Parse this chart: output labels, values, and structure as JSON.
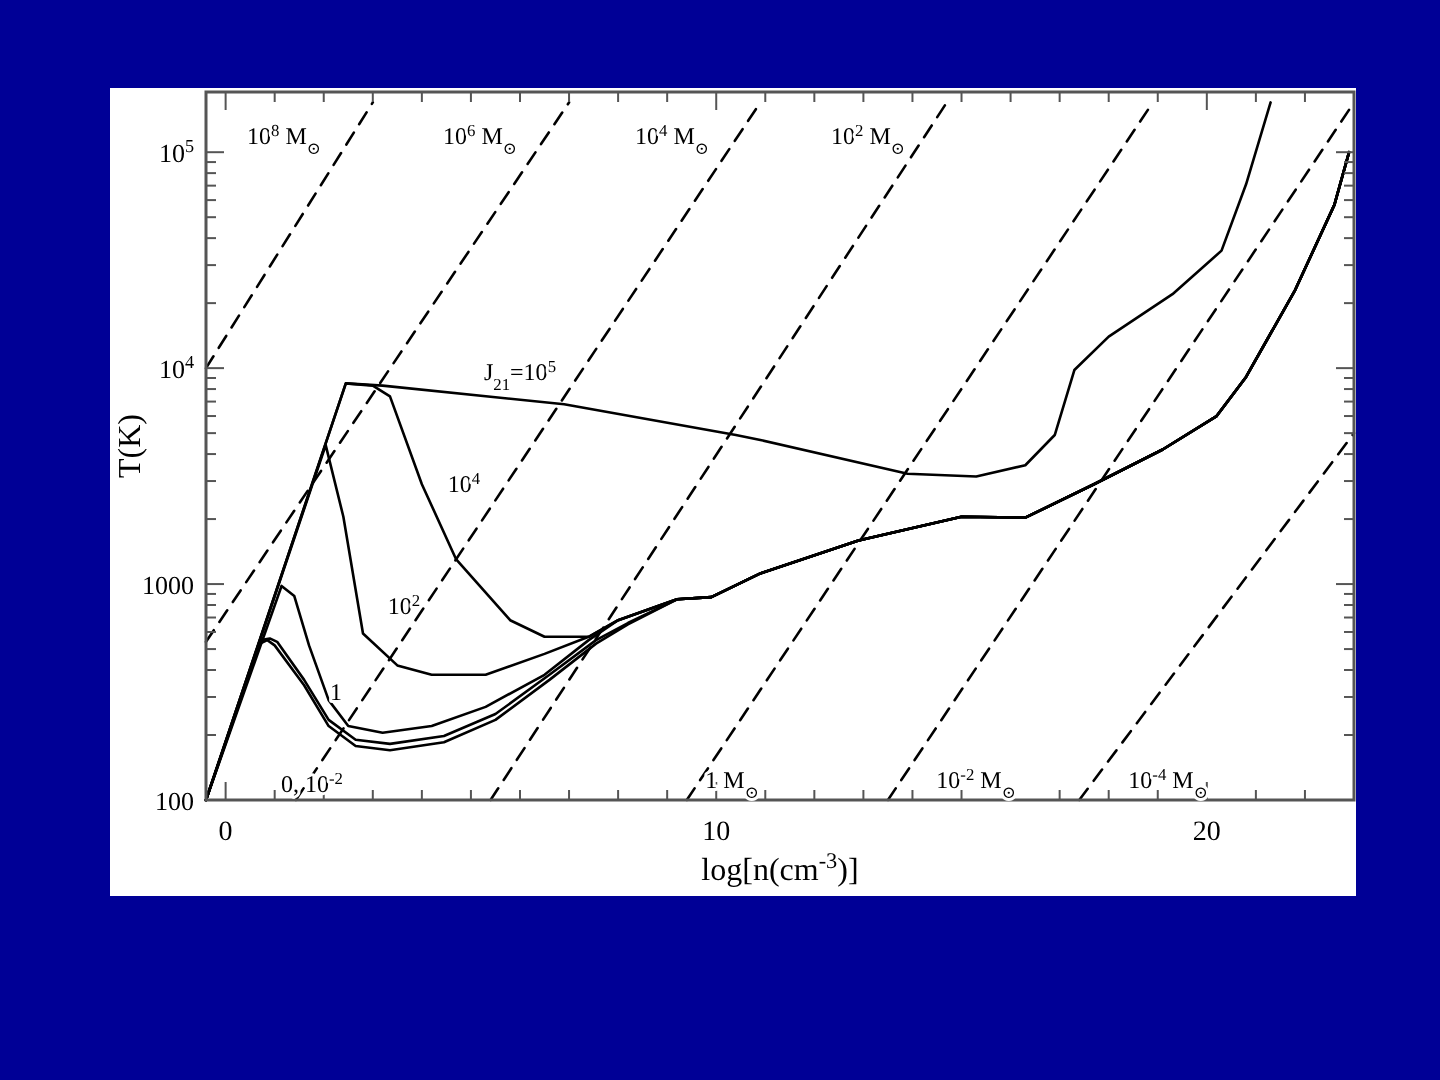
{
  "chart_data": {
    "type": "line",
    "xlabel": "log[n(cm$^{-3}$)]",
    "ylabel": "T(K)",
    "log": "y",
    "xlim": [
      -0.4,
      23.0
    ],
    "ylim": [
      100,
      190000
    ],
    "xticks": [
      0,
      {
        "value": 1,
        "label": null
      },
      {
        "value": 2,
        "label": null
      },
      {
        "value": 3,
        "label": null
      },
      {
        "value": 4,
        "label": null
      },
      {
        "value": 5,
        "label": null
      },
      {
        "value": 6,
        "label": null
      },
      {
        "value": 7,
        "label": null
      },
      {
        "value": 8,
        "label": null
      },
      {
        "value": 9,
        "label": null
      },
      10,
      {
        "value": 11,
        "label": null
      },
      {
        "value": 12,
        "label": null
      },
      {
        "value": 13,
        "label": null
      },
      {
        "value": 14,
        "label": null
      },
      {
        "value": 15,
        "label": null
      },
      {
        "value": 16,
        "label": null
      },
      {
        "value": 17,
        "label": null
      },
      {
        "value": 18,
        "label": null
      },
      {
        "value": 19,
        "label": null
      },
      20,
      {
        "value": 21,
        "label": null
      },
      {
        "value": 22,
        "label": null
      }
    ],
    "yticks": [
      100,
      {
        "value": 200,
        "label": null
      },
      {
        "value": 300,
        "label": null
      },
      {
        "value": 400,
        "label": null
      },
      {
        "value": 500,
        "label": null
      },
      {
        "value": 600,
        "label": null
      },
      {
        "value": 700,
        "label": null
      },
      {
        "value": 800,
        "label": null
      },
      {
        "value": 900,
        "label": null
      },
      1000,
      {
        "value": 2000,
        "label": null
      },
      {
        "value": 3000,
        "label": null
      },
      {
        "value": 4000,
        "label": null
      },
      {
        "value": 5000,
        "label": null
      },
      {
        "value": 6000,
        "label": null
      },
      {
        "value": 7000,
        "label": null
      },
      {
        "value": 8000,
        "label": null
      },
      {
        "value": 9000,
        "label": null
      },
      {
        "value": 10000,
        "label": "10$^{4}$"
      },
      {
        "value": 20000,
        "label": null
      },
      {
        "value": 30000,
        "label": null
      },
      {
        "value": 40000,
        "label": null
      },
      {
        "value": 50000,
        "label": null
      },
      {
        "value": 60000,
        "label": null
      },
      {
        "value": 70000,
        "label": null
      },
      {
        "value": 80000,
        "label": null
      },
      {
        "value": 90000,
        "label": null
      },
      {
        "value": 100000,
        "label": "10$^{5}$"
      }
    ],
    "series": [
      {
        "color": "#000000",
        "line_style": "solid",
        "x": [
          -0.4,
          2.45,
          3.2,
          6.9,
          10.4,
          10.9,
          13.9,
          15.3,
          16.3,
          16.9,
          17.3,
          18.0,
          19.3,
          20.3,
          20.8,
          21.3
        ],
        "values": [
          100,
          8500,
          8300,
          6800,
          4900,
          4650,
          3240,
          3150,
          3550,
          4900,
          9800,
          14000,
          22000,
          35000,
          71000,
          170000
        ]
      },
      {
        "color": "#000000",
        "line_style": "solid",
        "x": [
          -0.4,
          2.45,
          3.0,
          3.35,
          4.0,
          4.7,
          5.8,
          6.5,
          7.4,
          8.0,
          9.2,
          9.9,
          10.9,
          12.9,
          15.0,
          16.3,
          17.7,
          19.1,
          20.2,
          20.8,
          21.8,
          22.6,
          22.9
        ],
        "values": [
          100,
          8500,
          8300,
          7400,
          2900,
          1300,
          680,
          570,
          570,
          680,
          850,
          870,
          1120,
          1590,
          2050,
          2030,
          2900,
          4200,
          6000,
          9100,
          23000,
          57000,
          100000
        ]
      },
      {
        "color": "#000000",
        "line_style": "solid",
        "x": [
          -0.4,
          2.04,
          2.4,
          2.8,
          3.5,
          4.2,
          5.3,
          6.5,
          7.4,
          8.0,
          9.2,
          9.9,
          10.9,
          12.9,
          15.0,
          16.3,
          17.7,
          19.1,
          20.2,
          20.8,
          21.8,
          22.6,
          22.9
        ],
        "values": [
          100,
          4400,
          2050,
          590,
          420,
          380,
          380,
          475,
          570,
          680,
          850,
          870,
          1120,
          1590,
          2050,
          2030,
          2900,
          4200,
          6000,
          9100,
          23000,
          57000,
          100000
        ]
      },
      {
        "color": "#000000",
        "line_style": "solid",
        "x": [
          -0.4,
          1.14,
          1.4,
          1.7,
          2.1,
          2.5,
          3.2,
          4.2,
          5.3,
          6.5,
          7.4,
          8.0,
          9.2,
          9.9,
          10.9,
          12.9,
          15.0,
          16.3,
          17.7,
          19.1,
          20.2,
          20.8,
          21.8,
          22.6,
          22.9
        ],
        "values": [
          100,
          980,
          880,
          520,
          290,
          220,
          205,
          220,
          270,
          380,
          550,
          680,
          850,
          870,
          1120,
          1590,
          2050,
          2030,
          2900,
          4200,
          6000,
          9100,
          23000,
          57000,
          100000
        ]
      },
      {
        "color": "#000000",
        "line_style": "solid",
        "x": [
          -0.4,
          0.7,
          0.85,
          1.0,
          1.6,
          2.1,
          2.65,
          3.35,
          4.45,
          5.5,
          6.6,
          7.55,
          8.2,
          9.2,
          9.9,
          10.9,
          12.9,
          15.0,
          16.3,
          17.7,
          19.1,
          20.2,
          20.8,
          21.8,
          22.6,
          22.9
        ],
        "values": [
          100,
          530,
          550,
          520,
          340,
          220,
          178,
          170,
          185,
          235,
          360,
          530,
          650,
          850,
          870,
          1120,
          1590,
          2050,
          2030,
          2900,
          4200,
          6000,
          9100,
          23000,
          57000,
          100000
        ]
      },
      {
        "color": "#000000",
        "line_style": "solid",
        "x": [
          -0.4,
          0.72,
          0.9,
          1.05,
          1.6,
          2.1,
          2.65,
          3.35,
          4.45,
          5.5,
          6.6,
          7.55,
          8.2,
          9.2,
          9.9,
          10.9,
          12.9,
          15.0,
          16.3,
          17.7,
          19.1,
          20.2,
          20.8,
          21.8,
          22.6,
          22.9
        ],
        "values": [
          100,
          550,
          560,
          540,
          360,
          235,
          190,
          182,
          198,
          250,
          380,
          550,
          660,
          850,
          870,
          1120,
          1590,
          2050,
          2030,
          2900,
          4200,
          6000,
          9100,
          23000,
          57000,
          100000
        ]
      },
      {
        "color": "#000000",
        "line_style": "dashed",
        "x": [
          -0.4,
          3.0
        ],
        "values": [
          10000,
          170000
        ]
      },
      {
        "color": "#000000",
        "line_style": "dashed",
        "x": [
          -0.4,
          7.0
        ],
        "values": [
          540,
          170000
        ]
      },
      {
        "color": "#000000",
        "line_style": "dashed",
        "x": [
          1.43,
          10.9
        ],
        "values": [
          100,
          170000
        ]
      },
      {
        "color": "#000000",
        "line_style": "dashed",
        "x": [
          5.4,
          14.7
        ],
        "values": [
          100,
          170000
        ]
      },
      {
        "color": "#000000",
        "line_style": "dashed",
        "x": [
          9.4,
          18.9
        ],
        "values": [
          100,
          170000
        ]
      },
      {
        "color": "#000000",
        "line_style": "dashed",
        "x": [
          13.5,
          23.0
        ],
        "values": [
          100,
          170000
        ]
      },
      {
        "color": "#000000",
        "line_style": "dashed",
        "x": [
          17.4,
          23.0
        ],
        "values": [
          100,
          5000
        ]
      }
    ],
    "annotations": [
      "J$_{21}$=10$^{5}$",
      "10$^{4}$",
      "10$^{2}$",
      "1",
      "0, 10$^{-2}$",
      "10$^{8}$ M$_{⊙}$",
      "10$^{6}$ M$_{⊙}$",
      "10$^{4}$ M$_{⊙}$",
      "10$^{2}$ M$_{⊙}$",
      "1 M$_{⊙}$",
      "10$^{-2}$ M$_{⊙}$",
      "10$^{-4}$ M$_{⊙}$"
    ]
  }
}
